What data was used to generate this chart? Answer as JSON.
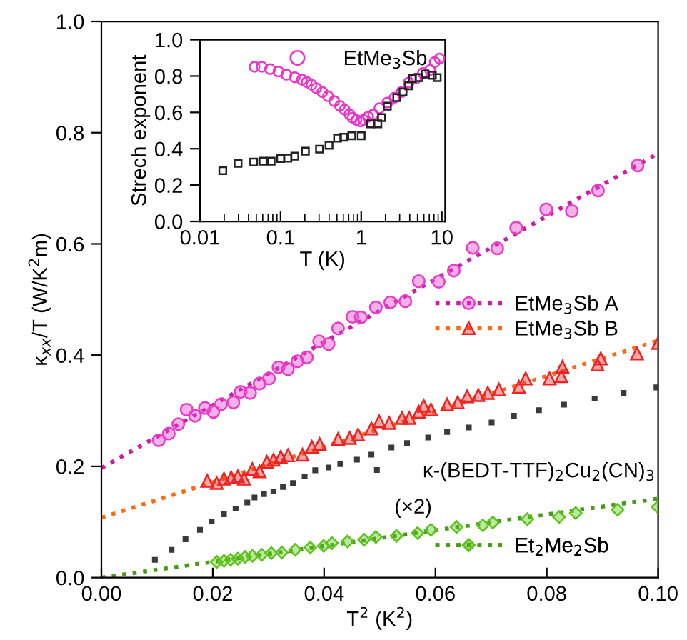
{
  "chart_data": [
    {
      "type": "scatter",
      "xlabel": "T$^{2}$ (K$^{2}$)",
      "ylabel": "κ$_{xx}$/T (W/K$^{2}$m)",
      "xlim": [
        0,
        0.1
      ],
      "ylim": [
        0,
        1
      ],
      "xticks": [
        {
          "value": 0,
          "label": "0.00"
        },
        {
          "value": 0.02,
          "label": "0.02"
        },
        {
          "value": 0.04,
          "label": "0.04"
        },
        {
          "value": 0.06,
          "label": "0.06"
        },
        {
          "value": 0.08,
          "label": "0.08"
        },
        {
          "value": 0.1,
          "label": "0.10"
        }
      ],
      "yticks": [
        {
          "value": 0,
          "label": "0.0"
        },
        {
          "value": 0.2,
          "label": "0.2"
        },
        {
          "value": 0.4,
          "label": "0.4"
        },
        {
          "value": 0.6,
          "label": "0.6"
        },
        {
          "value": 0.8,
          "label": "0.8"
        },
        {
          "value": 1,
          "label": "1.0"
        }
      ],
      "legend": "right",
      "annotations": [
        "(×2)"
      ],
      "series": [
        {
          "name": "EtMe$_{3}$Sb A",
          "marker": "circle",
          "color": "#e83cc8",
          "x": [
            0.0103,
            0.0121,
            0.0138,
            0.0153,
            0.0168,
            0.0186,
            0.0201,
            0.0215,
            0.0237,
            0.025,
            0.0267,
            0.0284,
            0.0301,
            0.0318,
            0.0335,
            0.0352,
            0.0369,
            0.0391,
            0.0408,
            0.0425,
            0.0451,
            0.0466,
            0.0493,
            0.0519,
            0.0546,
            0.057,
            0.0606,
            0.0633,
            0.0667,
            0.0711,
            0.0745,
            0.0799,
            0.0845,
            0.0892,
            0.0963
          ],
          "values": [
            0.247,
            0.259,
            0.276,
            0.302,
            0.291,
            0.305,
            0.298,
            0.312,
            0.315,
            0.334,
            0.332,
            0.349,
            0.358,
            0.378,
            0.375,
            0.389,
            0.396,
            0.425,
            0.42,
            0.448,
            0.469,
            0.468,
            0.486,
            0.495,
            0.497,
            0.533,
            0.532,
            0.552,
            0.593,
            0.592,
            0.629,
            0.662,
            0.659,
            0.696,
            0.741
          ]
        },
        {
          "type": "line",
          "line_style": "dotted",
          "marker": "none",
          "color": "#d01aaa",
          "x": [
            0,
            0.1
          ],
          "values": [
            0.197,
            0.763
          ]
        },
        {
          "name": "EtMe$_{3}$Sb B",
          "marker": "triangle",
          "color": "#ee2222",
          "x": [
            0.019,
            0.0207,
            0.022,
            0.0233,
            0.0245,
            0.0256,
            0.0271,
            0.0284,
            0.0297,
            0.0309,
            0.0322,
            0.0335,
            0.0361,
            0.0378,
            0.0392,
            0.0425,
            0.0446,
            0.0461,
            0.0485,
            0.0499,
            0.0517,
            0.054,
            0.0553,
            0.057,
            0.0579,
            0.0592,
            0.0621,
            0.064,
            0.0657,
            0.0677,
            0.0694,
            0.0714,
            0.075,
            0.0762,
            0.0805,
            0.0826,
            0.0828,
            0.0891,
            0.0897,
            0.0962,
            0.1
          ],
          "values": [
            0.174,
            0.17,
            0.178,
            0.18,
            0.182,
            0.178,
            0.195,
            0.191,
            0.208,
            0.212,
            0.217,
            0.22,
            0.221,
            0.235,
            0.24,
            0.249,
            0.251,
            0.257,
            0.268,
            0.281,
            0.278,
            0.287,
            0.287,
            0.298,
            0.309,
            0.302,
            0.311,
            0.315,
            0.326,
            0.328,
            0.332,
            0.338,
            0.343,
            0.358,
            0.358,
            0.362,
            0.379,
            0.383,
            0.394,
            0.403,
            0.422
          ]
        },
        {
          "type": "line",
          "line_style": "dotted",
          "marker": "none",
          "color": "#ff6a13",
          "x": [
            0,
            0.1
          ],
          "values": [
            0.108,
            0.426
          ]
        },
        {
          "name": "κ-(BEDT-TTF)$_{2}$Cu$_{2}$(CN)$_{3}$",
          "marker": "square",
          "color": "#3a3a3a",
          "x": [
            0.0096,
            0.0126,
            0.0151,
            0.0177,
            0.0198,
            0.022,
            0.0241,
            0.0262,
            0.0275,
            0.0292,
            0.0309,
            0.0326,
            0.0344,
            0.0365,
            0.0384,
            0.0408,
            0.0429,
            0.0459,
            0.0485,
            0.0521,
            0.0549,
            0.0587,
            0.0621,
            0.066,
            0.0701,
            0.0741,
            0.0786,
            0.0831,
            0.0886,
            0.0938,
            0.0997
          ],
          "values": [
            0.032,
            0.05,
            0.069,
            0.086,
            0.101,
            0.114,
            0.124,
            0.135,
            0.144,
            0.15,
            0.155,
            0.163,
            0.17,
            0.182,
            0.193,
            0.198,
            0.204,
            0.212,
            0.221,
            0.234,
            0.242,
            0.252,
            0.262,
            0.27,
            0.279,
            0.291,
            0.301,
            0.311,
            0.322,
            0.332,
            0.342
          ]
        },
        {
          "name": "Et$_{2}$Me$_{2}$Sb",
          "marker": "diamond",
          "color": "#5cc41a",
          "x": [
            0.0207,
            0.022,
            0.0232,
            0.0245,
            0.0258,
            0.0271,
            0.0288,
            0.0305,
            0.0324,
            0.0348,
            0.0375,
            0.0399,
            0.0414,
            0.0442,
            0.0472,
            0.0493,
            0.053,
            0.0568,
            0.0592,
            0.0638,
            0.0685,
            0.0703,
            0.0765,
            0.0822,
            0.0852,
            0.0927,
            0.0999
          ],
          "values": [
            0.028,
            0.03,
            0.032,
            0.034,
            0.037,
            0.039,
            0.041,
            0.044,
            0.045,
            0.05,
            0.054,
            0.057,
            0.062,
            0.065,
            0.068,
            0.073,
            0.075,
            0.08,
            0.086,
            0.091,
            0.094,
            0.099,
            0.105,
            0.109,
            0.116,
            0.122,
            0.127
          ]
        },
        {
          "type": "line",
          "line_style": "dotted",
          "marker": "none",
          "color": "#4a9a1a",
          "x": [
            0,
            0.1
          ],
          "values": [
            0,
            0.142
          ]
        }
      ]
    },
    {
      "type": "scatter",
      "xlabel": "T (K)",
      "ylabel": "Strech exponent",
      "log": "x",
      "xlim": [
        0.01,
        11
      ],
      "ylim": [
        0,
        1
      ],
      "xticks": [
        0.01,
        0.1,
        1,
        10
      ],
      "yticks": [
        {
          "value": 0,
          "label": "0.0"
        },
        {
          "value": 0.2,
          "label": "0.2"
        },
        {
          "value": 0.4,
          "label": "0.4"
        },
        {
          "value": 0.6,
          "label": "0.6"
        },
        {
          "value": 0.8,
          "label": "0.8"
        },
        {
          "value": 1,
          "label": "1.0"
        }
      ],
      "legend": "top",
      "series": [
        {
          "name": "EtMe$_{3}$Sb",
          "marker": "circle",
          "color": "#ee33cc",
          "x": [
            0.0475,
            0.0584,
            0.0741,
            0.094,
            0.118,
            0.15,
            0.184,
            0.211,
            0.242,
            0.277,
            0.33,
            0.388,
            0.462,
            0.544,
            0.624,
            0.714,
            0.784,
            0.874,
            0.976,
            1.07,
            1.22,
            1.41,
            1.68,
            2.11,
            2.59,
            3.17,
            3.88,
            4.76,
            5.83,
            7.14,
            8.17,
            9.35
          ],
          "values": [
            0.851,
            0.851,
            0.838,
            0.825,
            0.807,
            0.793,
            0.78,
            0.767,
            0.752,
            0.733,
            0.712,
            0.689,
            0.662,
            0.636,
            0.615,
            0.589,
            0.571,
            0.558,
            0.55,
            0.558,
            0.576,
            0.589,
            0.623,
            0.654,
            0.681,
            0.712,
            0.764,
            0.786,
            0.817,
            0.833,
            0.877,
            0.896
          ]
        },
        {
          "marker": "square",
          "color": "#222222",
          "x": [
            0.0192,
            0.0297,
            0.0464,
            0.0606,
            0.0763,
            0.1,
            0.123,
            0.15,
            0.203,
            0.304,
            0.399,
            0.509,
            0.607,
            0.764,
            1.0,
            1.31,
            1.61,
            1.79,
            2.11,
            2.76,
            3.3,
            3.88,
            4.32,
            5.22,
            6.22,
            7.63,
            8.76
          ],
          "values": [
            0.28,
            0.32,
            0.327,
            0.332,
            0.332,
            0.346,
            0.348,
            0.359,
            0.387,
            0.398,
            0.419,
            0.458,
            0.463,
            0.471,
            0.471,
            0.537,
            0.537,
            0.571,
            0.634,
            0.681,
            0.712,
            0.746,
            0.786,
            0.791,
            0.811,
            0.804,
            0.791
          ]
        }
      ]
    }
  ]
}
